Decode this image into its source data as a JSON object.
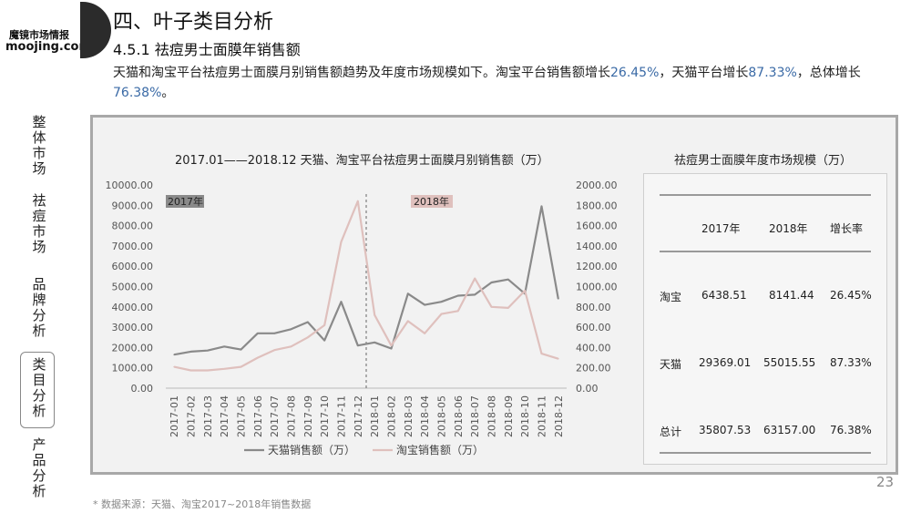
{
  "logo": {
    "line1": "魔镜市场情报",
    "line2": "moojing.com"
  },
  "nav": [
    {
      "label": "整体市场",
      "active": false
    },
    {
      "label": "祛痘市场",
      "active": false
    },
    {
      "label": "品牌分析",
      "active": false
    },
    {
      "label": "类目分析",
      "active": true
    },
    {
      "label": "产品分析",
      "active": false
    }
  ],
  "header": {
    "title": "四、叶子类目分析",
    "subtitle": "4.5.1 祛痘男士面膜年销售额",
    "desc_part1": "天猫和淘宝平台祛痘男士面膜月别销售额趋势及年度市场规模如下。淘宝平台销售额增长",
    "desc_taobao_growth": "26.45%",
    "desc_part2": "，天猫平台增长",
    "desc_tmall_growth": "87.33%",
    "desc_part3": "，总体增长",
    "desc_total_growth": "76.38%",
    "desc_part4": "。"
  },
  "chart_data": {
    "type": "line",
    "title": "2017.01——2018.12 天猫、淘宝平台祛痘男士面膜月别销售额（万）",
    "x": [
      "2017-01",
      "2017-02",
      "2017-03",
      "2017-04",
      "2017-05",
      "2017-06",
      "2017-07",
      "2017-08",
      "2017-09",
      "2017-10",
      "2017-11",
      "2017-12",
      "2018-01",
      "2018-02",
      "2018-03",
      "2018-04",
      "2018-05",
      "2018-06",
      "2018-07",
      "2018-08",
      "2018-09",
      "2018-10",
      "2018-11",
      "2018-12"
    ],
    "y_left_ticks": [
      "10000.00",
      "9000.00",
      "8000.00",
      "7000.00",
      "6000.00",
      "5000.00",
      "4000.00",
      "3000.00",
      "2000.00",
      "1000.00",
      "0.00"
    ],
    "y_right_ticks": [
      "2000.00",
      "1800.00",
      "1600.00",
      "1400.00",
      "1200.00",
      "1000.00",
      "800.00",
      "600.00",
      "400.00",
      "200.00",
      "0.00"
    ],
    "ylim_left": [
      0,
      10000
    ],
    "ylim_right": [
      0,
      2000
    ],
    "series": [
      {
        "name": "天猫销售额（万）",
        "axis": "left",
        "color": "#8a8a8a",
        "values": [
          1650,
          1800,
          1850,
          2050,
          1900,
          2700,
          2700,
          2900,
          3250,
          2350,
          4250,
          2100,
          2250,
          1950,
          4650,
          4100,
          4250,
          4550,
          4600,
          5200,
          5350,
          4650,
          8950,
          4400
        ]
      },
      {
        "name": "淘宝销售额（万）",
        "axis": "right",
        "color": "#dfc0bd",
        "values": [
          210,
          175,
          175,
          190,
          210,
          300,
          375,
          410,
          500,
          620,
          1440,
          1840,
          720,
          420,
          660,
          540,
          730,
          760,
          1080,
          800,
          790,
          960,
          340,
          290
        ]
      }
    ],
    "annotations": [
      {
        "text": "2017年",
        "color": "#8a8a8a"
      },
      {
        "text": "2018年",
        "color": "#dfc0bd"
      }
    ],
    "legend": "bottom"
  },
  "table": {
    "title": "祛痘男士面膜年度市场规模（万）",
    "headers": [
      "",
      "2017年",
      "2018年",
      "增长率"
    ],
    "rows": [
      {
        "label": "淘宝",
        "v2017": "6438.51",
        "v2018": "8141.44",
        "growth": "26.45%"
      },
      {
        "label": "天猫",
        "v2017": "29369.01",
        "v2018": "55015.55",
        "growth": "87.33%"
      },
      {
        "label": "总计",
        "v2017": "35807.53",
        "v2018": "63157.00",
        "growth": "76.38%"
      }
    ]
  },
  "page_number": "23",
  "footer": "* 数据来源：天猫、淘宝2017~2018年销售数据"
}
